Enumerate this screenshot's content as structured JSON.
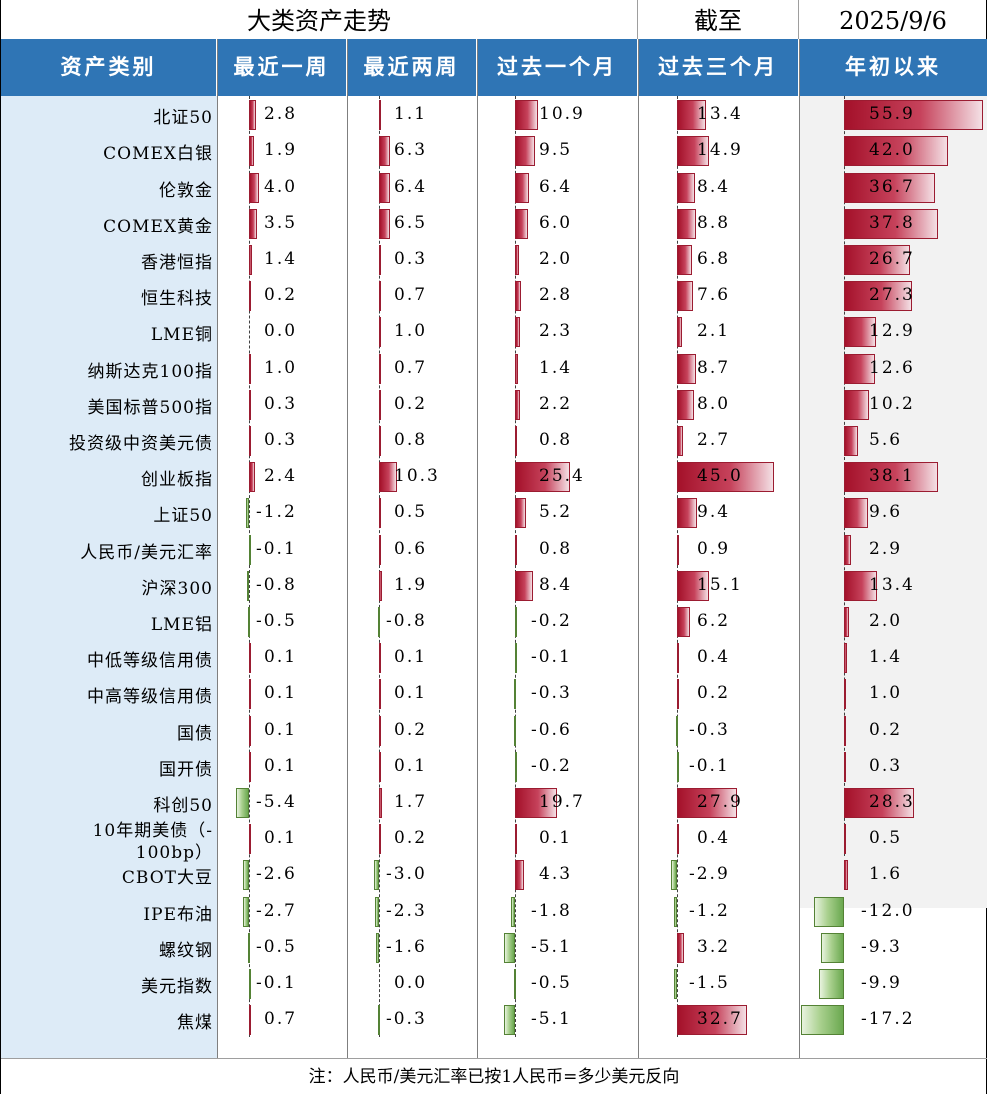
{
  "header": {
    "title": "大类资产走势",
    "as_of_label": "截至",
    "date": "2025/9/6"
  },
  "columns": {
    "asset": "资产类别",
    "periods": [
      "最近一周",
      "最近两周",
      "过去一个月",
      "过去三个月",
      "年初以来"
    ]
  },
  "chart_data": {
    "type": "table",
    "title": "大类资产走势",
    "date": "2025/9/6",
    "categories": [
      "北证50",
      "COMEX白银",
      "伦敦金",
      "COMEX黄金",
      "香港恒指",
      "恒生科技",
      "LME铜",
      "纳斯达克100指",
      "美国标普500指",
      "投资级中资美元债",
      "创业板指",
      "上证50",
      "人民币/美元汇率",
      "沪深300",
      "LME铝",
      "中低等级信用债",
      "中高等级信用债",
      "国债",
      "国开债",
      "科创50",
      "10年期美债（-\n100bp）",
      "CBOT大豆",
      "IPE布油",
      "螺纹钢",
      "美元指数",
      "焦煤"
    ],
    "series": [
      {
        "name": "最近一周",
        "values": [
          2.8,
          1.9,
          4.0,
          3.5,
          1.4,
          0.2,
          0.0,
          1.0,
          0.3,
          0.3,
          2.4,
          -1.2,
          -0.1,
          -0.8,
          -0.5,
          0.1,
          0.1,
          0.1,
          0.1,
          -5.4,
          0.1,
          -2.6,
          -2.7,
          -0.5,
          -0.1,
          0.7
        ],
        "labels": [
          "2.8",
          "1.9",
          "4.0",
          "3.5",
          "1.4",
          "0.2",
          "0.0",
          "1.0",
          "0.3",
          "0.3",
          "2.4",
          "-1.2",
          "-0.1",
          "-0.8",
          "-0.5",
          "0.1",
          "0.1",
          "0.1",
          "0.1",
          "-5.4",
          "0.1",
          "-2.6",
          "-2.7",
          "-0.5",
          "-0.1",
          "0.7"
        ]
      },
      {
        "name": "最近两周",
        "values": [
          1.1,
          6.3,
          6.4,
          6.5,
          0.3,
          0.7,
          1.0,
          0.7,
          0.2,
          0.8,
          10.3,
          0.5,
          0.6,
          1.9,
          -0.8,
          0.1,
          0.1,
          0.2,
          0.1,
          1.7,
          0.2,
          -3.0,
          -2.3,
          -1.6,
          0.0,
          -0.3
        ],
        "labels": [
          "1.1",
          "6.3",
          "6.4",
          "6.5",
          "0.3",
          "0.7",
          "1.0",
          "0.7",
          "0.2",
          "0.8",
          "10.3",
          "0.5",
          "0.6",
          "1.9",
          "-0.8",
          "0.1",
          "0.1",
          "0.2",
          "0.1",
          "1.7",
          "0.2",
          "-3.0",
          "-2.3",
          "-1.6",
          "0.0",
          "-0.3"
        ]
      },
      {
        "name": "过去一个月",
        "values": [
          10.9,
          9.5,
          6.4,
          6.0,
          2.0,
          2.8,
          2.3,
          1.4,
          2.2,
          0.8,
          25.4,
          5.2,
          0.8,
          8.4,
          -0.2,
          -0.1,
          -0.3,
          -0.6,
          -0.2,
          19.7,
          0.1,
          4.3,
          -1.8,
          -5.1,
          -0.5,
          -5.1
        ],
        "labels": [
          "10.9",
          "9.5",
          "6.4",
          "6.0",
          "2.0",
          "2.8",
          "2.3",
          "1.4",
          "2.2",
          "0.8",
          "25.4",
          "5.2",
          "0.8",
          "8.4",
          "-0.2",
          "-0.1",
          "-0.3",
          "-0.6",
          "-0.2",
          "19.7",
          "0.1",
          "4.3",
          "-1.8",
          "-5.1",
          "-0.5",
          "-5.1"
        ]
      },
      {
        "name": "过去三个月",
        "values": [
          13.4,
          14.9,
          8.4,
          8.8,
          6.8,
          7.6,
          2.1,
          8.7,
          8.0,
          2.7,
          45.0,
          9.4,
          0.9,
          15.1,
          6.2,
          0.4,
          0.2,
          -0.3,
          -0.1,
          27.9,
          0.4,
          -2.9,
          -1.2,
          3.2,
          -1.5,
          32.7
        ],
        "labels": [
          "13.4",
          "14.9",
          "8.4",
          "8.8",
          "6.8",
          "7.6",
          "2.1",
          "8.7",
          "8.0",
          "2.7",
          "45.0",
          "9.4",
          "0.9",
          "15.1",
          "6.2",
          "0.4",
          "0.2",
          "-0.3",
          "-0.1",
          "27.9",
          "0.4",
          "-2.9",
          "-1.2",
          "3.2",
          "-1.5",
          "32.7"
        ]
      },
      {
        "name": "年初以来",
        "values": [
          55.9,
          42.0,
          36.7,
          37.8,
          26.7,
          27.3,
          12.9,
          12.6,
          10.2,
          5.6,
          38.1,
          9.6,
          2.9,
          13.4,
          2.0,
          1.4,
          1.0,
          0.2,
          0.3,
          28.3,
          0.5,
          1.6,
          -12.0,
          -9.3,
          -9.9,
          -17.2
        ],
        "labels": [
          "55.9",
          "42.0",
          "36.7",
          "37.8",
          "26.7",
          "27.3",
          "12.9",
          "12.6",
          "10.2",
          "5.6",
          "38.1",
          "9.6",
          "2.9",
          "13.4",
          "2.0",
          "1.4",
          "1.0",
          "0.2",
          "0.3",
          "28.3",
          "0.5",
          "1.6",
          "-12.0",
          "-9.3",
          "-9.9",
          "-17.2"
        ]
      }
    ],
    "colors": {
      "positive": "#a4112a",
      "negative": "#6aa84f",
      "header": "#2f75b5",
      "name_column": "#ddebf7"
    }
  },
  "footer": {
    "note": "注：人民币/美元汇率已按1人民币=多少美元反向"
  }
}
